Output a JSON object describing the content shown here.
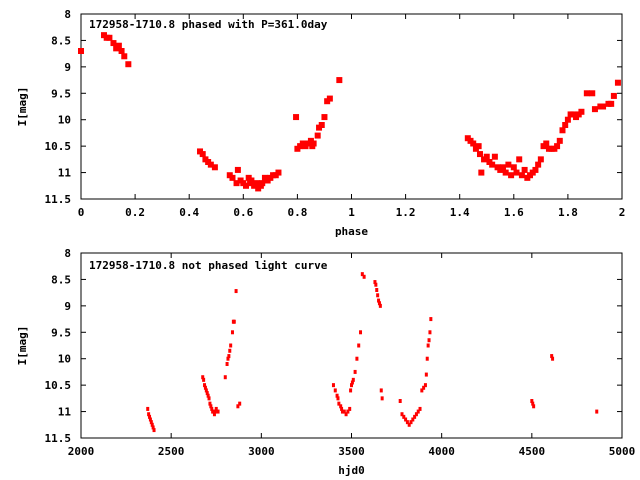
{
  "chart_data": [
    {
      "type": "scatter",
      "title": "172958-1710.8 phased with P=361.0day",
      "xlabel": "phase",
      "ylabel": "I[mag]",
      "xlim": [
        0,
        2
      ],
      "ylim": [
        11.5,
        8
      ],
      "y_inverted": true,
      "x_ticks": [
        "0",
        "0.2",
        "0.4",
        "0.6",
        "0.8",
        "1",
        "1.2",
        "1.4",
        "1.6",
        "1.8",
        "2"
      ],
      "y_ticks": [
        "8",
        "8.5",
        "9",
        "9.5",
        "10",
        "10.5",
        "11",
        "11.5"
      ],
      "marker_color": "#ff0000",
      "series": [
        {
          "x": [
            0.0,
            0.085,
            0.095,
            0.105,
            0.12,
            0.13,
            0.14,
            0.15,
            0.16,
            0.175,
            0.44,
            0.45,
            0.46,
            0.47,
            0.48,
            0.495,
            0.55,
            0.56,
            0.575,
            0.58,
            0.59,
            0.6,
            0.61,
            0.62,
            0.625,
            0.63,
            0.64,
            0.65,
            0.655,
            0.665,
            0.67,
            0.68,
            0.69,
            0.7,
            0.71,
            0.72,
            0.73,
            0.795,
            0.8,
            0.81,
            0.82,
            0.83,
            0.84,
            0.85,
            0.855,
            0.86,
            0.875,
            0.88,
            0.89,
            0.9,
            0.91,
            0.92,
            0.955,
            1.43,
            1.44,
            1.45,
            1.46,
            1.47,
            1.475,
            1.48,
            1.49,
            1.5,
            1.51,
            1.52,
            1.53,
            1.54,
            1.55,
            1.56,
            1.57,
            1.58,
            1.59,
            1.6,
            1.61,
            1.62,
            1.63,
            1.64,
            1.65,
            1.66,
            1.67,
            1.68,
            1.69,
            1.7,
            1.71,
            1.72,
            1.73,
            1.74,
            1.75,
            1.76,
            1.77,
            1.78,
            1.79,
            1.8,
            1.81,
            1.82,
            1.83,
            1.84,
            1.85,
            1.87,
            1.89,
            1.9,
            1.92,
            1.93,
            1.95,
            1.96,
            1.97,
            1.985
          ],
          "y": [
            8.7,
            8.4,
            8.45,
            8.45,
            8.55,
            8.65,
            8.6,
            8.7,
            8.8,
            8.95,
            10.6,
            10.65,
            10.75,
            10.8,
            10.85,
            10.9,
            11.05,
            11.1,
            11.2,
            10.95,
            11.15,
            11.2,
            11.25,
            11.1,
            11.2,
            11.15,
            11.25,
            11.2,
            11.3,
            11.25,
            11.2,
            11.1,
            11.15,
            11.1,
            11.05,
            11.05,
            11.0,
            9.95,
            10.55,
            10.5,
            10.45,
            10.5,
            10.45,
            10.4,
            10.5,
            10.45,
            10.3,
            10.15,
            10.1,
            9.95,
            9.65,
            9.6,
            9.25,
            10.35,
            10.4,
            10.45,
            10.55,
            10.5,
            10.65,
            11.0,
            10.75,
            10.7,
            10.8,
            10.85,
            10.7,
            10.9,
            10.95,
            10.9,
            11.0,
            10.85,
            11.05,
            10.9,
            11.0,
            10.75,
            11.05,
            10.95,
            11.1,
            11.05,
            11.0,
            10.95,
            10.85,
            10.75,
            10.5,
            10.45,
            10.55,
            10.55,
            10.55,
            10.5,
            10.4,
            10.2,
            10.1,
            10.0,
            9.9,
            9.9,
            9.95,
            9.9,
            9.85,
            9.5,
            9.5,
            9.8,
            9.75,
            9.75,
            9.7,
            9.7,
            9.55,
            9.3
          ]
        }
      ]
    },
    {
      "type": "scatter",
      "title": "172958-1710.8 not phased light curve",
      "xlabel": "hjd0",
      "ylabel": "I[mag]",
      "xlim": [
        2000,
        5000
      ],
      "ylim": [
        11.5,
        8
      ],
      "y_inverted": true,
      "x_ticks": [
        "2000",
        "2500",
        "3000",
        "3500",
        "4000",
        "4500",
        "5000"
      ],
      "y_ticks": [
        "8",
        "8.5",
        "9",
        "9.5",
        "10",
        "10.5",
        "11",
        "11.5"
      ],
      "marker_color": "#ff0000",
      "series": [
        {
          "x": [
            2370,
            2375,
            2380,
            2385,
            2390,
            2395,
            2400,
            2405,
            2675,
            2680,
            2685,
            2690,
            2695,
            2700,
            2705,
            2710,
            2715,
            2720,
            2725,
            2730,
            2735,
            2740,
            2745,
            2750,
            2760,
            2800,
            2810,
            2815,
            2820,
            2825,
            2830,
            2840,
            2845,
            2850,
            2860,
            2870,
            2880,
            3400,
            3410,
            3420,
            3425,
            3430,
            3440,
            3445,
            3450,
            3460,
            3470,
            3480,
            3490,
            3495,
            3500,
            3505,
            3510,
            3520,
            3530,
            3540,
            3550,
            3560,
            3570,
            3630,
            3635,
            3640,
            3645,
            3650,
            3655,
            3660,
            3665,
            3670,
            3770,
            3780,
            3790,
            3800,
            3810,
            3820,
            3830,
            3840,
            3850,
            3860,
            3870,
            3880,
            3890,
            3900,
            3910,
            3915,
            3920,
            3925,
            3930,
            3935,
            3940,
            4500,
            4505,
            4510,
            4610,
            4615,
            4860
          ],
          "y": [
            10.95,
            11.05,
            11.1,
            11.15,
            11.2,
            11.25,
            11.3,
            11.35,
            10.35,
            10.4,
            10.5,
            10.55,
            10.6,
            10.65,
            10.7,
            10.75,
            10.85,
            10.9,
            10.95,
            11.0,
            11.0,
            11.05,
            11.0,
            10.95,
            11.0,
            10.35,
            10.1,
            10.0,
            9.95,
            9.85,
            9.75,
            9.5,
            9.3,
            9.3,
            8.72,
            10.9,
            10.85,
            10.5,
            10.6,
            10.7,
            10.75,
            10.85,
            10.9,
            10.95,
            11.0,
            11.0,
            11.05,
            11.0,
            10.95,
            10.6,
            10.5,
            10.45,
            10.4,
            10.25,
            10.0,
            9.75,
            9.5,
            8.4,
            8.45,
            8.55,
            8.6,
            8.7,
            8.8,
            8.9,
            8.95,
            9.0,
            10.6,
            10.75,
            10.8,
            11.05,
            11.1,
            11.15,
            11.2,
            11.25,
            11.2,
            11.15,
            11.1,
            11.05,
            11.0,
            10.95,
            10.6,
            10.55,
            10.5,
            10.3,
            10.0,
            9.75,
            9.65,
            9.5,
            9.25,
            10.8,
            10.85,
            10.9,
            9.95,
            10.0,
            11.0
          ]
        }
      ]
    }
  ]
}
